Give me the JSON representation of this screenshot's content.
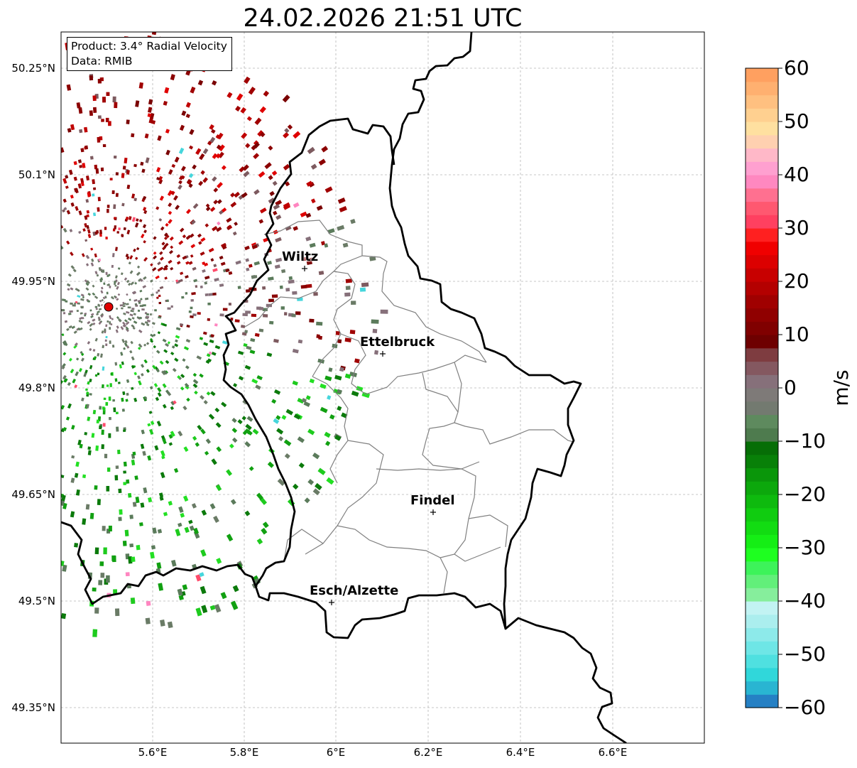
{
  "title": "24.02.2026 21:51 UTC",
  "info": {
    "product": "Product: 3.4° Radial Velocity",
    "data": "Data: RMIB"
  },
  "axes": {
    "lat_labels": [
      "50.25°N",
      "50.1°N",
      "49.95°N",
      "49.8°N",
      "49.65°N",
      "49.5°N",
      "49.35°N"
    ],
    "lon_labels": [
      "5.6°E",
      "5.8°E",
      "6°E",
      "6.2°E",
      "6.4°E",
      "6.6°E"
    ]
  },
  "cities": [
    {
      "name": "Wiltz"
    },
    {
      "name": "Ettelbruck"
    },
    {
      "name": "Findel"
    },
    {
      "name": "Esch/Alzette"
    }
  ],
  "colorbar": {
    "label": "m/s",
    "min": -60,
    "max": 60,
    "ticks": [
      "60",
      "50",
      "40",
      "30",
      "20",
      "10",
      "0",
      "−10",
      "−20",
      "−30",
      "−40",
      "−50",
      "−60"
    ],
    "colors": [
      "#2580c4",
      "#29b5d2",
      "#30d7da",
      "#4fe0e0",
      "#6ee6e6",
      "#8deaea",
      "#abeeee",
      "#c2f3f3",
      "#86ee9c",
      "#62ef7a",
      "#3df35a",
      "#1eff20",
      "#15ee15",
      "#12dc12",
      "#10cc10",
      "#0eba0e",
      "#0ca80c",
      "#0a960a",
      "#088008",
      "#066e06",
      "#4e7b4e",
      "#5e8a5e",
      "#737a70",
      "#7e7a78",
      "#86707a",
      "#845860",
      "#7e3c40",
      "#6e0000",
      "#800000",
      "#900000",
      "#a00000",
      "#b40000",
      "#c80000",
      "#dc0000",
      "#f00000",
      "#ff2020",
      "#ff4060",
      "#ff5870",
      "#ff7090",
      "#ff88c0",
      "#ffa0d0",
      "#ffb8c8",
      "#ffd0b0",
      "#ffe0a0",
      "#ffd090",
      "#ffc080",
      "#ffb070",
      "#ffa060"
    ],
    "radar_palette": [
      "#8b0000",
      "#a00000",
      "#7a0000",
      "#c00000",
      "#e00000",
      "#7d5a5f",
      "#86707a",
      "#6a7b66",
      "#5b7b5b",
      "#0b7a0b",
      "#11a011",
      "#1ecb1e",
      "#23e023",
      "#ff4b6b",
      "#ff85c0",
      "#46d6dc"
    ]
  },
  "radar": {
    "site": "radar-site",
    "site_color": "#e00000"
  }
}
